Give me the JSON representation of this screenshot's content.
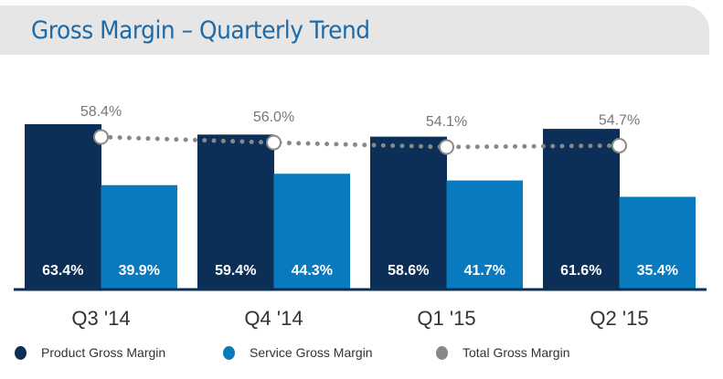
{
  "chart_data": {
    "type": "bar",
    "title": "Gross Margin – Quarterly Trend",
    "categories": [
      "Q3  '14",
      "Q4  '14",
      "Q1  '15",
      "Q2  '15"
    ],
    "series": [
      {
        "name": "Product Gross Margin",
        "color": "#0b2f57",
        "values": [
          63.4,
          59.4,
          58.6,
          61.6
        ],
        "labels": [
          "63.4%",
          "59.4%",
          "58.6%",
          "61.6%"
        ]
      },
      {
        "name": "Service Gross Margin",
        "color": "#0a7abf",
        "values": [
          39.9,
          44.3,
          41.7,
          35.4
        ],
        "labels": [
          "39.9%",
          "44.3%",
          "41.7%",
          "35.4%"
        ]
      },
      {
        "name": "Total Gross Margin",
        "type": "line",
        "style": "dotted",
        "color": "#888888",
        "values": [
          58.4,
          56.0,
          54.1,
          54.7
        ],
        "labels": [
          "58.4%",
          "56.0%",
          "54.1%",
          "54.7%"
        ]
      }
    ],
    "xlabel": "",
    "ylabel": "",
    "ylim": [
      0,
      65
    ],
    "grid": false,
    "legend": "bottom"
  },
  "header": {
    "title": "Gross Margin – Quarterly Trend"
  },
  "legend": [
    {
      "label": "Product Gross Margin",
      "color": "#0b2f57"
    },
    {
      "label": "Service Gross Margin",
      "color": "#0a7abf"
    },
    {
      "label": "Total Gross Margin",
      "color": "#888888"
    }
  ]
}
